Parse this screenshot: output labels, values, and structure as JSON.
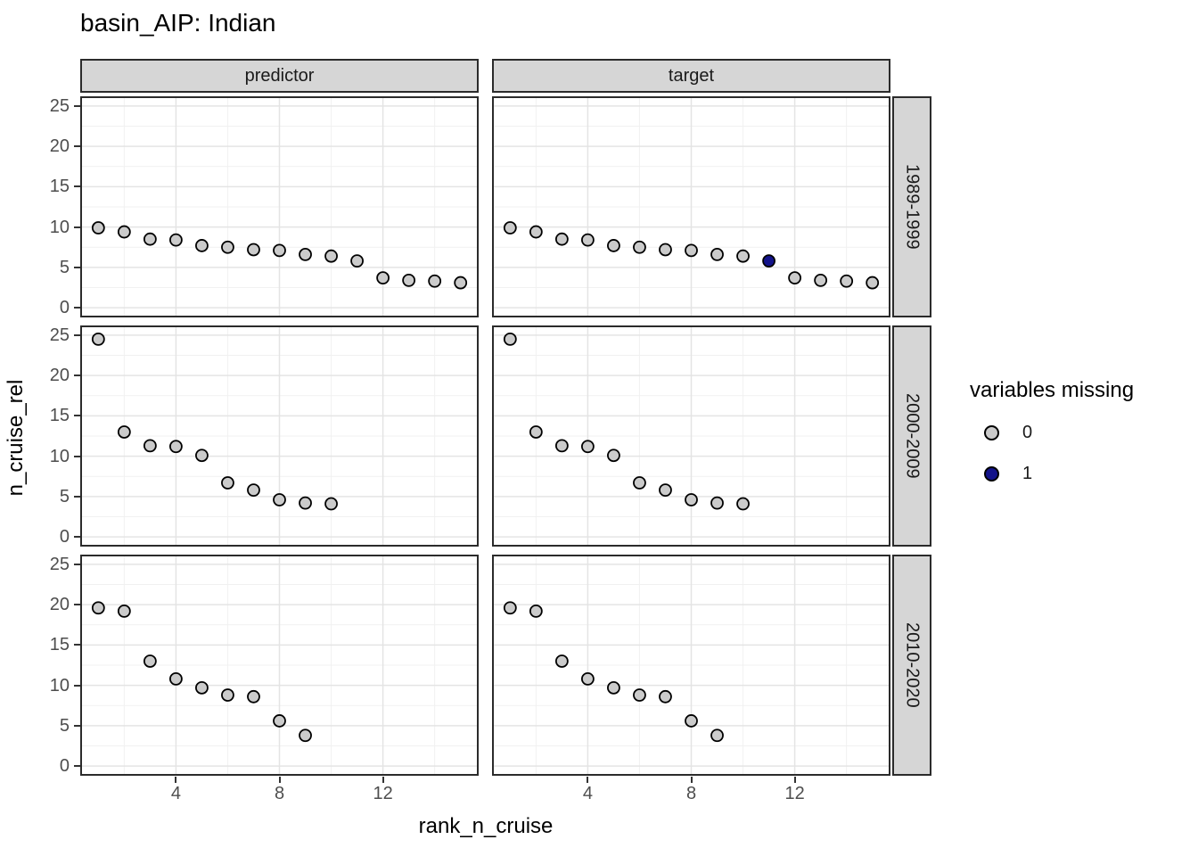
{
  "title": "basin_AIP: Indian",
  "facet_columns": [
    {
      "label": "predictor"
    },
    {
      "label": "target"
    }
  ],
  "facet_rows": [
    {
      "label": "1989-1999"
    },
    {
      "label": "2000-2009"
    },
    {
      "label": "2010-2020"
    }
  ],
  "axes": {
    "x": {
      "label": "rank_n_cruise",
      "ticks": [
        4,
        8,
        12
      ],
      "minor_ticks": [
        2,
        6,
        10,
        14
      ],
      "lim": [
        0.3,
        15.7
      ]
    },
    "y": {
      "label": "n_cruise_rel",
      "ticks": [
        0,
        5,
        10,
        15,
        20,
        25
      ],
      "minor_ticks": [
        2.5,
        7.5,
        12.5,
        17.5,
        22.5
      ],
      "lim": [
        -1.2,
        26.2
      ]
    }
  },
  "legend": {
    "title": "variables missing",
    "entries": [
      {
        "label": "0",
        "color": "#cbcbcb"
      },
      {
        "label": "1",
        "color": "#13138a"
      }
    ]
  },
  "colors": {
    "point_fill_0": "#cbcbcb",
    "point_fill_1": "#13138a",
    "point_stroke": "#000000",
    "strip_fill": "#d6d6d6",
    "panel_border": "#2b2b2b",
    "grid_major": "#e4e4e4",
    "grid_minor": "#f1f1f1",
    "tick_label": "#4d4d4d"
  },
  "chart_data": {
    "type": "scatter",
    "title": "basin_AIP: Indian",
    "xlabel": "rank_n_cruise",
    "ylabel": "n_cruise_rel",
    "xlim": [
      0.3,
      15.7
    ],
    "ylim": [
      -1.2,
      26.2
    ],
    "x_ticks": [
      4,
      8,
      12
    ],
    "y_ticks": [
      0,
      5,
      10,
      15,
      20,
      25
    ],
    "grid": "on",
    "legend_position": "right",
    "legend_title": "variables missing",
    "panels": [
      {
        "col": "predictor",
        "row": "1989-1999",
        "x": [
          1,
          2,
          3,
          4,
          5,
          6,
          7,
          8,
          9,
          10,
          11,
          12,
          13,
          14,
          15
        ],
        "y": [
          9.9,
          9.4,
          8.5,
          8.4,
          7.7,
          7.5,
          7.2,
          7.1,
          6.6,
          6.4,
          5.8,
          3.7,
          3.4,
          3.3,
          3.1
        ],
        "missing": [
          0,
          0,
          0,
          0,
          0,
          0,
          0,
          0,
          0,
          0,
          0,
          0,
          0,
          0,
          0
        ]
      },
      {
        "col": "target",
        "row": "1989-1999",
        "x": [
          1,
          2,
          3,
          4,
          5,
          6,
          7,
          8,
          9,
          10,
          11,
          12,
          13,
          14,
          15
        ],
        "y": [
          9.9,
          9.4,
          8.5,
          8.4,
          7.7,
          7.5,
          7.2,
          7.1,
          6.6,
          6.4,
          5.8,
          3.7,
          3.4,
          3.3,
          3.1
        ],
        "missing": [
          0,
          0,
          0,
          0,
          0,
          0,
          0,
          0,
          0,
          0,
          1,
          0,
          0,
          0,
          0
        ]
      },
      {
        "col": "predictor",
        "row": "2000-2009",
        "x": [
          1,
          2,
          3,
          4,
          5,
          6,
          7,
          8,
          9,
          10
        ],
        "y": [
          24.5,
          13.0,
          11.3,
          11.2,
          10.1,
          6.7,
          5.8,
          4.6,
          4.2,
          4.1
        ],
        "missing": [
          0,
          0,
          0,
          0,
          0,
          0,
          0,
          0,
          0,
          0
        ]
      },
      {
        "col": "target",
        "row": "2000-2009",
        "x": [
          1,
          2,
          3,
          4,
          5,
          6,
          7,
          8,
          9,
          10
        ],
        "y": [
          24.5,
          13.0,
          11.3,
          11.2,
          10.1,
          6.7,
          5.8,
          4.6,
          4.2,
          4.1
        ],
        "missing": [
          0,
          0,
          0,
          0,
          0,
          0,
          0,
          0,
          0,
          0
        ]
      },
      {
        "col": "predictor",
        "row": "2010-2020",
        "x": [
          1,
          2,
          3,
          4,
          5,
          6,
          7,
          8,
          9
        ],
        "y": [
          19.6,
          19.2,
          13.0,
          10.8,
          9.7,
          8.8,
          8.6,
          5.6,
          3.8
        ],
        "missing": [
          0,
          0,
          0,
          0,
          0,
          0,
          0,
          0,
          0
        ]
      },
      {
        "col": "target",
        "row": "2010-2020",
        "x": [
          1,
          2,
          3,
          4,
          5,
          6,
          7,
          8,
          9
        ],
        "y": [
          19.6,
          19.2,
          13.0,
          10.8,
          9.7,
          8.8,
          8.6,
          5.6,
          3.8
        ],
        "missing": [
          0,
          0,
          0,
          0,
          0,
          0,
          0,
          0,
          0
        ]
      }
    ]
  }
}
